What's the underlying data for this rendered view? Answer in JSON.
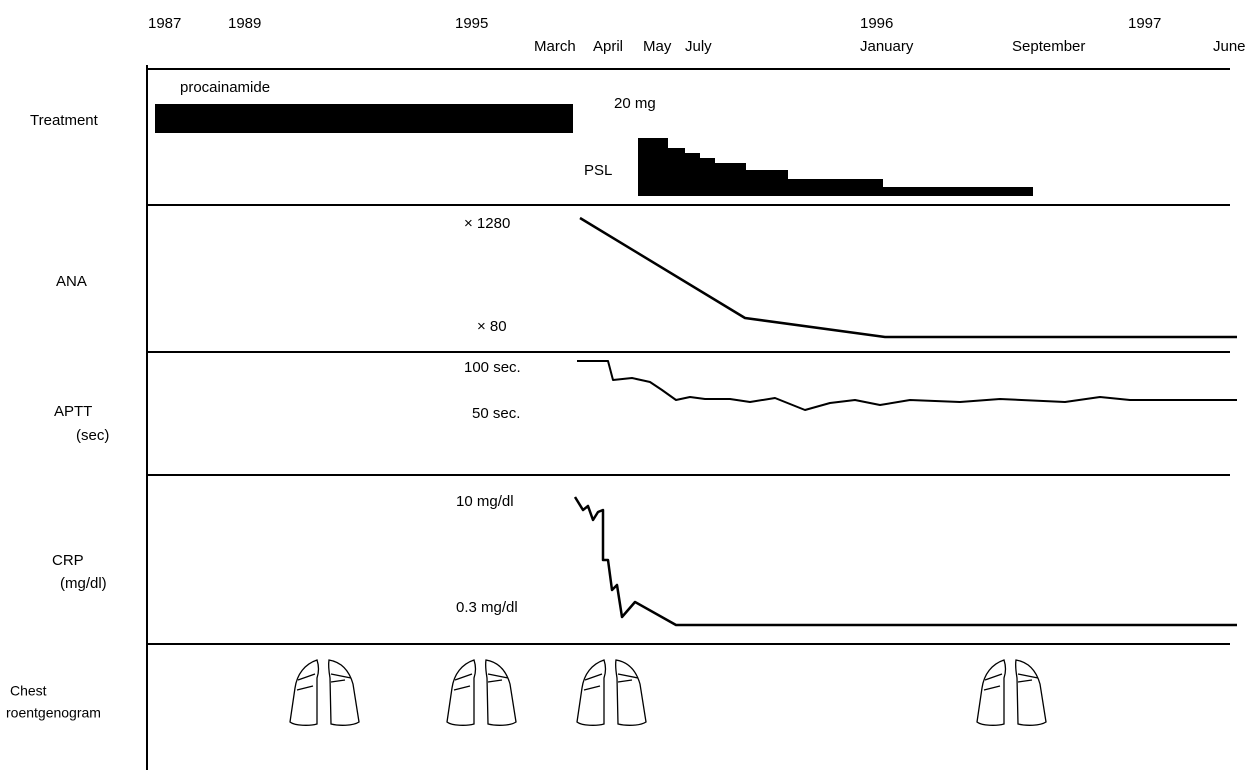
{
  "timeline": {
    "years": [
      "1987",
      "1989",
      "1995",
      "1996",
      "1997"
    ],
    "months": [
      "March",
      "April",
      "May",
      "July",
      "January",
      "September",
      "June"
    ]
  },
  "rows": [
    {
      "label": "Treatment"
    },
    {
      "label": "ANA"
    },
    {
      "label": "APTT",
      "unit": "(sec)"
    },
    {
      "label": "CRP",
      "unit": "(mg/dl)"
    },
    {
      "label": "Chest",
      "unit": "roentgenogram"
    }
  ],
  "annotations": {
    "procainamide": "procainamide",
    "psl_dose": "20 mg",
    "psl": "PSL",
    "ana_high": "× 1280",
    "ana_low": "× 80",
    "aptt_high": "100 sec.",
    "aptt_low": "50 sec.",
    "crp_high": "10 mg/dl",
    "crp_low": "0.3 mg/dl"
  }
}
